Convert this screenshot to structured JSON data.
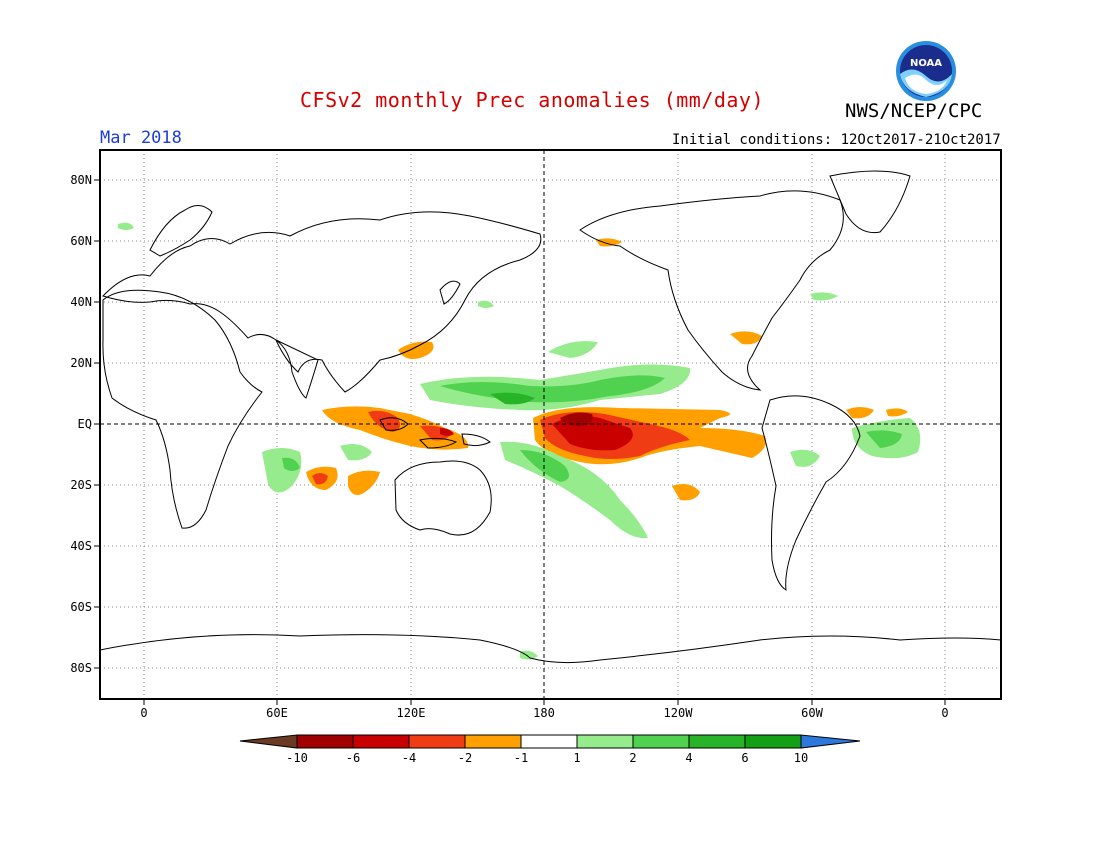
{
  "header": {
    "title": "CFSv2 monthly Prec anomalies (mm/day)",
    "agency": "NWS/NCEP/CPC",
    "logo_text": "NOAA",
    "month": "Mar 2018",
    "initial_conditions": "Initial conditions: 12Oct2017-21Oct2017"
  },
  "map": {
    "lat_labels": [
      "80N",
      "60N",
      "40N",
      "20N",
      "EQ",
      "20S",
      "40S",
      "60S",
      "80S"
    ],
    "lon_labels": [
      "0",
      "60E",
      "120E",
      "180",
      "120W",
      "60W",
      "0"
    ]
  },
  "colorbar": {
    "labels": [
      "-10",
      "-6",
      "-4",
      "-2",
      "-1",
      "1",
      "2",
      "4",
      "6",
      "10"
    ],
    "colors": [
      "#6b3a22",
      "#a00000",
      "#c80000",
      "#f03c14",
      "#ffa000",
      "#ffffff",
      "#96eb8c",
      "#50d250",
      "#28b428",
      "#14a014",
      "#2d78dc"
    ]
  }
}
